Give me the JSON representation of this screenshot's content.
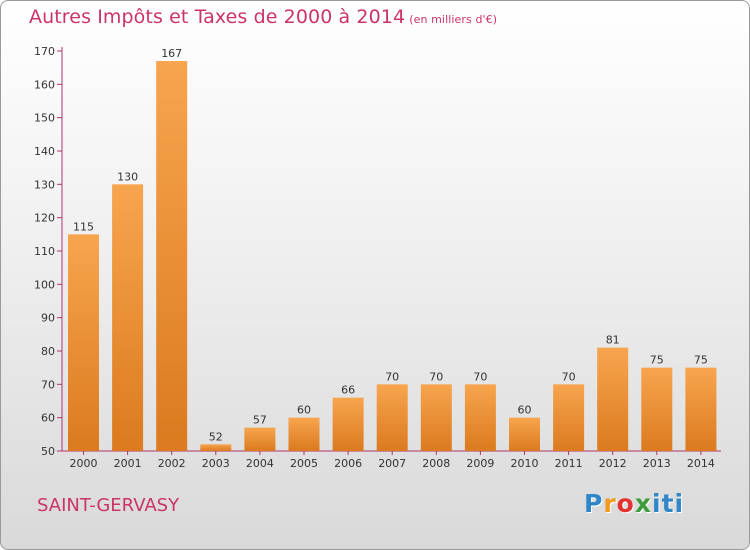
{
  "title": "Autres Impôts et Taxes de 2000 à 2014",
  "subtitle": "(en milliers d'€)",
  "place": "SAINT-GERVASY",
  "logo": {
    "p": "P",
    "r": "r",
    "o": "o",
    "x": "x",
    "iti": "iti"
  },
  "colors": {
    "title": "#cc3366",
    "bar_light": "#f7a54e",
    "bar_dark": "#db7a1f",
    "axis": "#b0356b"
  },
  "chart_data": {
    "type": "bar",
    "categories": [
      "2000",
      "2001",
      "2002",
      "2003",
      "2004",
      "2005",
      "2006",
      "2007",
      "2008",
      "2009",
      "2010",
      "2011",
      "2012",
      "2013",
      "2014"
    ],
    "values": [
      115,
      130,
      167,
      52,
      57,
      60,
      66,
      70,
      70,
      70,
      60,
      70,
      81,
      75,
      75
    ],
    "ylim": [
      50,
      170
    ],
    "yticks": [
      50,
      60,
      70,
      80,
      90,
      100,
      110,
      120,
      130,
      140,
      150,
      160,
      170
    ],
    "grid": false,
    "data_labels": true
  }
}
